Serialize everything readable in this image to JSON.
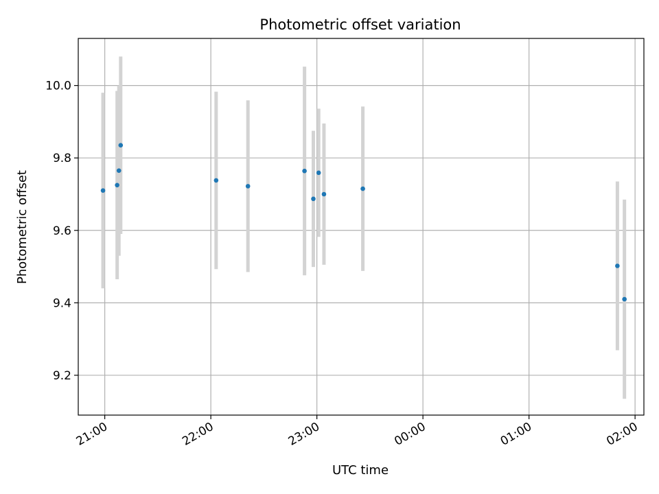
{
  "chart_data": {
    "type": "scatter",
    "title": "Photometric offset variation",
    "xlabel": "UTC time",
    "ylabel": "Photometric offset",
    "x_axis_type": "time",
    "x_tick_labels": [
      "21:00",
      "22:00",
      "23:00",
      "00:00",
      "01:00",
      "02:00"
    ],
    "y_tick_labels": [
      "9.2",
      "9.4",
      "9.6",
      "9.8",
      "10.0"
    ],
    "y_ticks": [
      9.2,
      9.4,
      9.6,
      9.8,
      10.0
    ],
    "xlim": [
      "20:45",
      "02:05"
    ],
    "ylim": [
      9.09,
      10.13
    ],
    "grid": true,
    "legend": false,
    "marker_color": "#1f77b4",
    "errorbar_color": "#d3d3d3",
    "points": [
      {
        "x": "20:59",
        "y": 9.71,
        "err": 0.27
      },
      {
        "x": "21:07",
        "y": 9.725,
        "err": 0.26
      },
      {
        "x": "21:08",
        "y": 9.765,
        "err": 0.235
      },
      {
        "x": "21:09",
        "y": 9.835,
        "err": 0.245
      },
      {
        "x": "22:03",
        "y": 9.738,
        "err": 0.245
      },
      {
        "x": "22:21",
        "y": 9.722,
        "err": 0.237
      },
      {
        "x": "22:53",
        "y": 9.764,
        "err": 0.288
      },
      {
        "x": "22:58",
        "y": 9.687,
        "err": 0.188
      },
      {
        "x": "23:01",
        "y": 9.759,
        "err": 0.177
      },
      {
        "x": "23:04",
        "y": 9.7,
        "err": 0.195
      },
      {
        "x": "23:26",
        "y": 9.715,
        "err": 0.227
      },
      {
        "x": "01:50",
        "y": 9.502,
        "err": 0.233
      },
      {
        "x": "01:54",
        "y": 9.41,
        "err": 0.275
      }
    ]
  }
}
